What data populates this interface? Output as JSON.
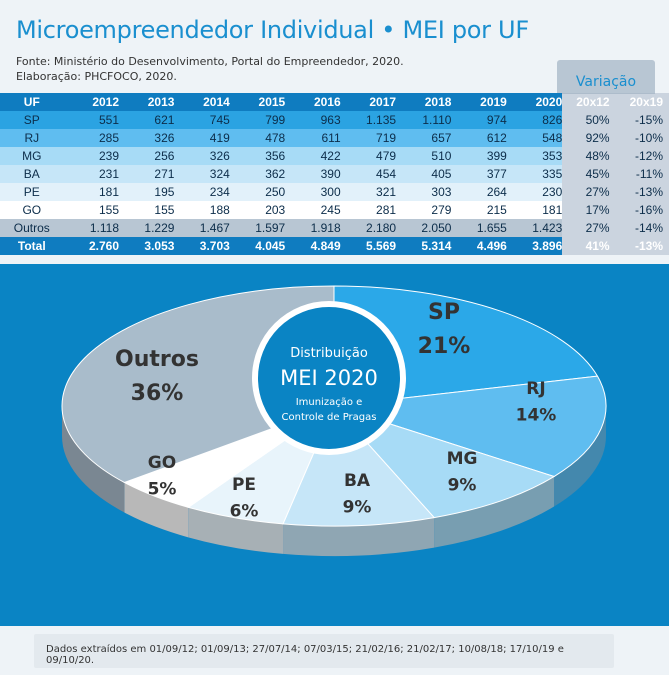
{
  "title": "Microempreendedor Individual • MEI por UF",
  "source_line1": "Fonte: Ministério do Desenvolvimento, Portal do Empreendedor, 2020.",
  "source_line2": "Elaboração: PHCFOCO, 2020.",
  "variation_label": "Variação",
  "table": {
    "headers": [
      "UF",
      "2012",
      "2013",
      "2014",
      "2015",
      "2016",
      "2017",
      "2018",
      "2019",
      "2020",
      "20x12",
      "20x19"
    ],
    "rows": [
      [
        "SP",
        "551",
        "621",
        "745",
        "799",
        "963",
        "1.135",
        "1.110",
        "974",
        "826",
        "50%",
        "-15%"
      ],
      [
        "RJ",
        "285",
        "326",
        "419",
        "478",
        "611",
        "719",
        "657",
        "612",
        "548",
        "92%",
        "-10%"
      ],
      [
        "MG",
        "239",
        "256",
        "326",
        "356",
        "422",
        "479",
        "510",
        "399",
        "353",
        "48%",
        "-12%"
      ],
      [
        "BA",
        "231",
        "271",
        "324",
        "362",
        "390",
        "454",
        "405",
        "377",
        "335",
        "45%",
        "-11%"
      ],
      [
        "PE",
        "181",
        "195",
        "234",
        "250",
        "300",
        "321",
        "303",
        "264",
        "230",
        "27%",
        "-13%"
      ],
      [
        "GO",
        "155",
        "155",
        "188",
        "203",
        "245",
        "281",
        "279",
        "215",
        "181",
        "17%",
        "-16%"
      ],
      [
        "Outros",
        "1.118",
        "1.229",
        "1.467",
        "1.597",
        "1.918",
        "2.180",
        "2.050",
        "1.655",
        "1.423",
        "27%",
        "-14%"
      ]
    ],
    "total": [
      "Total",
      "2.760",
      "3.053",
      "3.703",
      "4.045",
      "4.849",
      "5.569",
      "5.314",
      "4.496",
      "3.896",
      "41%",
      "-13%"
    ]
  },
  "center": {
    "line1": "Distribuição",
    "line2": "MEI 2020",
    "line3": "Imunização e",
    "line4": "Controle de Pragas"
  },
  "footer": "Dados extraídos em 01/09/12; 01/09/13; 27/07/14; 07/03/15; 21/02/16; 21/02/17; 10/08/18; 17/10/19 e 09/10/20.",
  "chart_data": {
    "type": "pie",
    "title": "MEI 2020",
    "slices": [
      {
        "label": "SP",
        "value": 21,
        "text": "21%",
        "color": "#2ba8e8"
      },
      {
        "label": "RJ",
        "value": 14,
        "text": "14%",
        "color": "#5fbdf0"
      },
      {
        "label": "MG",
        "value": 9,
        "text": "9%",
        "color": "#a7dbf6"
      },
      {
        "label": "BA",
        "value": 9,
        "text": "9%",
        "color": "#c6e6f8"
      },
      {
        "label": "PE",
        "value": 6,
        "text": "6%",
        "color": "#e8f4fb"
      },
      {
        "label": "GO",
        "value": 5,
        "text": "5%",
        "color": "#ffffff"
      },
      {
        "label": "Outros",
        "value": 36,
        "text": "36%",
        "color": "#a9bccb"
      }
    ]
  }
}
